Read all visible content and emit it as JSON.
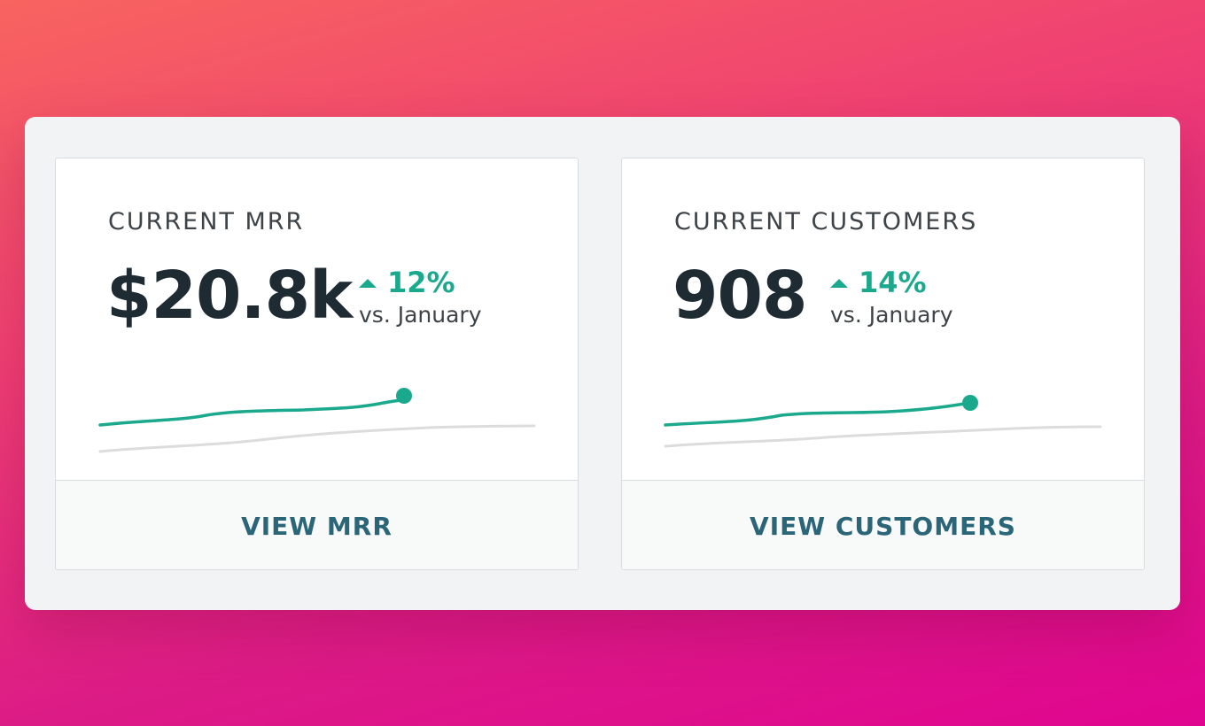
{
  "colors": {
    "accent": "#1ba98d",
    "trend_line": "#1ba98d",
    "baseline_line": "#d9d9d9",
    "link": "#2b6678",
    "text": "#1f2b33"
  },
  "cards": [
    {
      "title": "CURRENT MRR",
      "value": "$20.8k",
      "delta": "12%",
      "delta_icon": "triangle-up-icon",
      "caption": "vs. January",
      "action": "VIEW MRR"
    },
    {
      "title": "CURRENT CUSTOMERS",
      "value": "908",
      "delta": "14%",
      "delta_icon": "triangle-up-icon",
      "caption": "vs. January",
      "action": "VIEW CUSTOMERS"
    }
  ]
}
